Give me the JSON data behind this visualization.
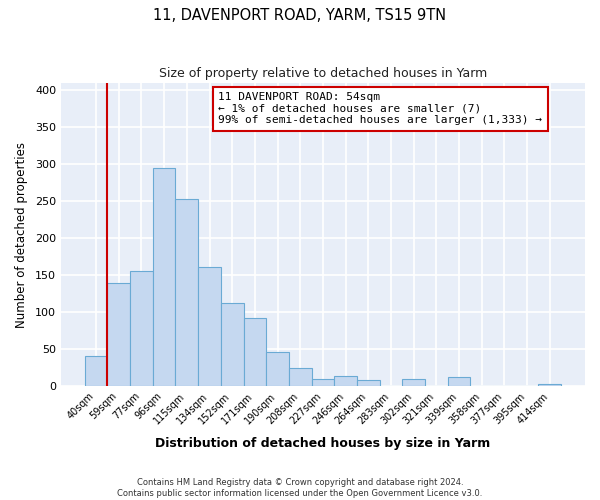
{
  "title": "11, DAVENPORT ROAD, YARM, TS15 9TN",
  "subtitle": "Size of property relative to detached houses in Yarm",
  "xlabel": "Distribution of detached houses by size in Yarm",
  "ylabel": "Number of detached properties",
  "bar_labels": [
    "40sqm",
    "59sqm",
    "77sqm",
    "96sqm",
    "115sqm",
    "134sqm",
    "152sqm",
    "171sqm",
    "190sqm",
    "208sqm",
    "227sqm",
    "246sqm",
    "264sqm",
    "283sqm",
    "302sqm",
    "321sqm",
    "339sqm",
    "358sqm",
    "377sqm",
    "395sqm",
    "414sqm"
  ],
  "bar_heights": [
    40,
    140,
    155,
    295,
    253,
    161,
    113,
    92,
    46,
    25,
    10,
    13,
    8,
    0,
    10,
    0,
    12,
    0,
    0,
    0,
    3
  ],
  "bar_color": "#c5d8f0",
  "bar_edge_color": "#6aaad4",
  "ylim": [
    0,
    410
  ],
  "yticks": [
    0,
    50,
    100,
    150,
    200,
    250,
    300,
    350,
    400
  ],
  "property_line_color": "#cc0000",
  "annotation_title": "11 DAVENPORT ROAD: 54sqm",
  "annotation_line1": "← 1% of detached houses are smaller (7)",
  "annotation_line2": "99% of semi-detached houses are larger (1,333) →",
  "annotation_box_color": "#cc0000",
  "plot_bg_color": "#e8eef8",
  "fig_bg_color": "#ffffff",
  "footer1": "Contains HM Land Registry data © Crown copyright and database right 2024.",
  "footer2": "Contains public sector information licensed under the Open Government Licence v3.0."
}
